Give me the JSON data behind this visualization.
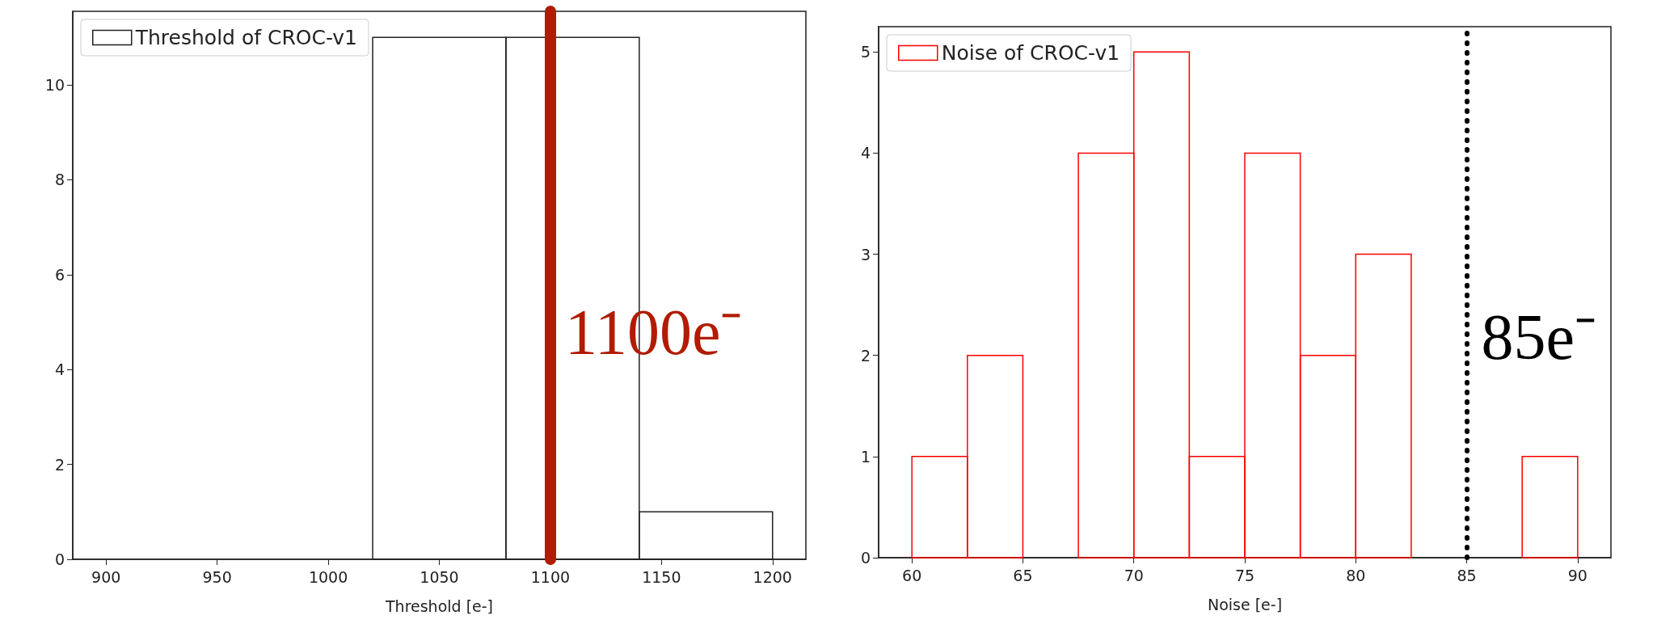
{
  "chart_data": [
    {
      "type": "histogram",
      "xlabel": "Threshold [e-]",
      "bins": [
        900,
        960,
        1020,
        1080,
        1140,
        1200
      ],
      "series": [
        {
          "name": "Threshold of CROC-v1",
          "color": "#222222",
          "values": [
            0,
            0,
            11,
            11,
            1
          ]
        }
      ],
      "xlim": [
        885,
        1215
      ],
      "xticks": [
        900,
        950,
        1000,
        1050,
        1100,
        1150,
        1200
      ],
      "ylim": [
        0,
        11.55
      ],
      "yticks": [
        0,
        2,
        4,
        6,
        8,
        10
      ],
      "ref_lines": [
        {
          "axis": "x",
          "value": 1100,
          "label": "1100e⁻",
          "color": "#b01c00",
          "line_style": "solid"
        }
      ],
      "legend": "top left",
      "grid": false
    },
    {
      "type": "histogram",
      "xlabel": "Noise [e-]",
      "bins": [
        60,
        62.5,
        65,
        67.5,
        70,
        72.5,
        75,
        77.5,
        80,
        82.5,
        85,
        87.5,
        90
      ],
      "series": [
        {
          "name": "Noise of CROC-v1",
          "color": "#ff0000",
          "values": [
            1,
            2,
            0,
            4,
            5,
            1,
            4,
            2,
            3,
            0,
            0,
            1
          ]
        }
      ],
      "xlim": [
        58.5,
        91.5
      ],
      "xticks": [
        60,
        65,
        70,
        75,
        80,
        85,
        90
      ],
      "ylim": [
        0,
        5.25
      ],
      "yticks": [
        0,
        1,
        2,
        3,
        4,
        5
      ],
      "ref_lines": [
        {
          "axis": "x",
          "value": 85,
          "label": "85e⁻",
          "color": "#000000",
          "line_style": "dotted"
        }
      ],
      "legend": "top left",
      "grid": false
    }
  ]
}
